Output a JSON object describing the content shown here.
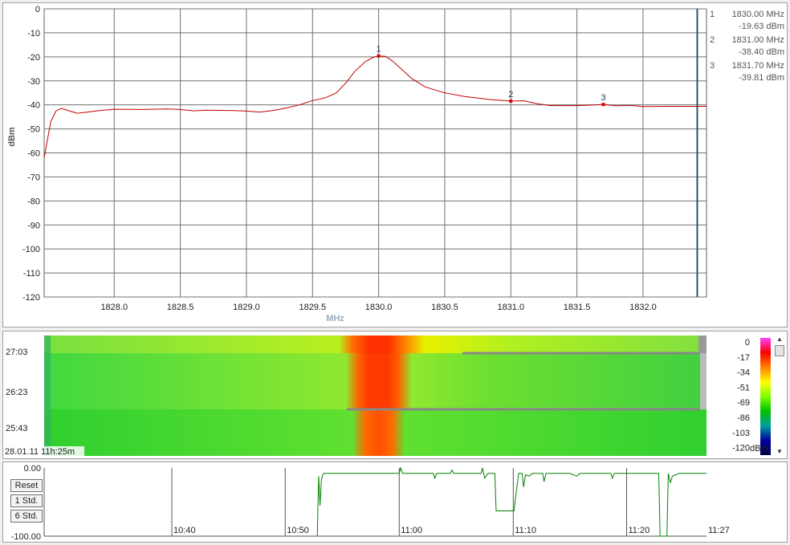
{
  "spectrum": {
    "chart_data": {
      "type": "line",
      "xlabel": "MHz",
      "ylabel": "dBm",
      "xlim": [
        1827.47,
        1832.48
      ],
      "ylim": [
        -120,
        0
      ],
      "xticks": [
        "1828.0",
        "1828.5",
        "1829.0",
        "1829.5",
        "1830.0",
        "1830.5",
        "1831.0",
        "1831.5",
        "1832.0"
      ],
      "xtick_values": [
        1828.0,
        1828.5,
        1829.0,
        1829.5,
        1830.0,
        1830.5,
        1831.0,
        1831.5,
        1832.0
      ],
      "yticks": [
        "0",
        "-10",
        "-20",
        "-30",
        "-40",
        "-50",
        "-60",
        "-70",
        "-80",
        "-90",
        "-100",
        "-110",
        "-120"
      ],
      "ytick_values": [
        0,
        -10,
        -20,
        -30,
        -40,
        -50,
        -60,
        -70,
        -80,
        -90,
        -100,
        -110,
        -120
      ],
      "grid": true,
      "cursor_x": 1832.41,
      "series": [
        {
          "color": "#c00000",
          "points": [
            [
              1827.47,
              -62
            ],
            [
              1827.52,
              -47
            ],
            [
              1827.56,
              -42.5
            ],
            [
              1827.6,
              -41.5
            ],
            [
              1827.66,
              -42.5
            ],
            [
              1827.72,
              -43.5
            ],
            [
              1827.8,
              -43
            ],
            [
              1827.9,
              -42.3
            ],
            [
              1828.0,
              -41.8
            ],
            [
              1828.2,
              -41.9
            ],
            [
              1828.4,
              -41.7
            ],
            [
              1828.5,
              -41.9
            ],
            [
              1828.6,
              -42.5
            ],
            [
              1828.7,
              -42.2
            ],
            [
              1828.9,
              -42.4
            ],
            [
              1829.0,
              -42.6
            ],
            [
              1829.1,
              -43
            ],
            [
              1829.2,
              -42.4
            ],
            [
              1829.3,
              -41.3
            ],
            [
              1829.4,
              -40
            ],
            [
              1829.5,
              -38.2
            ],
            [
              1829.6,
              -37
            ],
            [
              1829.68,
              -35
            ],
            [
              1829.75,
              -31
            ],
            [
              1829.82,
              -26
            ],
            [
              1829.9,
              -22
            ],
            [
              1829.96,
              -20.2
            ],
            [
              1830.0,
              -19.63
            ],
            [
              1830.05,
              -19.8
            ],
            [
              1830.1,
              -21.5
            ],
            [
              1830.18,
              -25.5
            ],
            [
              1830.25,
              -29
            ],
            [
              1830.35,
              -32.5
            ],
            [
              1830.5,
              -35
            ],
            [
              1830.65,
              -36.5
            ],
            [
              1830.85,
              -37.8
            ],
            [
              1831.0,
              -38.4
            ],
            [
              1831.1,
              -38.3
            ],
            [
              1831.2,
              -39.5
            ],
            [
              1831.3,
              -40.3
            ],
            [
              1831.5,
              -40.3
            ],
            [
              1831.6,
              -40.1
            ],
            [
              1831.7,
              -39.81
            ],
            [
              1831.8,
              -40.4
            ],
            [
              1831.9,
              -40.2
            ],
            [
              1832.0,
              -40.7
            ],
            [
              1832.2,
              -40.6
            ],
            [
              1832.48,
              -40.6
            ]
          ]
        }
      ],
      "markers": [
        {
          "label": "1",
          "x": 1830.0,
          "y": -19.63
        },
        {
          "label": "2",
          "x": 1831.0,
          "y": -38.4
        },
        {
          "label": "3",
          "x": 1831.7,
          "y": -39.81
        }
      ]
    },
    "marker_table": [
      {
        "id": "1",
        "freq": "1830.00 MHz",
        "level": "-19.63 dBm"
      },
      {
        "id": "2",
        "freq": "1831.00 MHz",
        "level": "-38.40 dBm"
      },
      {
        "id": "3",
        "freq": "1831.70 MHz",
        "level": "-39.81 dBm"
      }
    ]
  },
  "waterfall": {
    "chart_data": {
      "type": "heatmap",
      "xlim": [
        1827.47,
        1832.48
      ],
      "time_labels": [
        "27:03",
        "26:23",
        "25:43"
      ],
      "timestamp": "28.01.11 11h:25m",
      "peak_center": 1830.0,
      "colorbar": {
        "ticks": [
          "0",
          "-17",
          "-34",
          "-51",
          "-69",
          "-86",
          "-103",
          "-120"
        ],
        "unit": "dBm",
        "stops": [
          "#ff40ff",
          "#ff0000",
          "#ff8000",
          "#ffff00",
          "#80ff00",
          "#00c000",
          "#00a0a0",
          "#0000a0",
          "#000040"
        ]
      }
    }
  },
  "trend": {
    "buttons": {
      "reset": "Reset",
      "std1": "1 Std.",
      "std6": "6 Std."
    },
    "chart_data": {
      "type": "line",
      "ylim": [
        -100,
        0
      ],
      "yticks": [
        "0.00",
        "-100.00"
      ],
      "xlim": [
        10.48,
        11.45
      ],
      "xticks": [
        "10:40",
        "10:50",
        "11:00",
        "11:10",
        "11:20",
        "11:27"
      ],
      "xtick_values": [
        10.667,
        10.833,
        11.0,
        11.167,
        11.333,
        11.45
      ],
      "series": [
        {
          "color": "#008000",
          "points": [
            [
              10.88,
              -100
            ],
            [
              10.882,
              -12
            ],
            [
              10.884,
              -55
            ],
            [
              10.886,
              -18
            ],
            [
              10.888,
              -10
            ],
            [
              10.89,
              -8
            ],
            [
              11.0,
              -8
            ],
            [
              11.002,
              0
            ],
            [
              11.005,
              -8
            ],
            [
              11.05,
              -8
            ],
            [
              11.052,
              -15
            ],
            [
              11.055,
              -8
            ],
            [
              11.075,
              -8
            ],
            [
              11.077,
              -3
            ],
            [
              11.08,
              -8
            ],
            [
              11.12,
              -8
            ],
            [
              11.122,
              0
            ],
            [
              11.125,
              -15
            ],
            [
              11.13,
              -8
            ],
            [
              11.14,
              -8
            ],
            [
              11.142,
              -63
            ],
            [
              11.168,
              -63
            ],
            [
              11.17,
              -45
            ],
            [
              11.175,
              -8
            ],
            [
              11.18,
              -8
            ],
            [
              11.182,
              -28
            ],
            [
              11.185,
              -10
            ],
            [
              11.19,
              -12
            ],
            [
              11.195,
              -8
            ],
            [
              11.21,
              -8
            ],
            [
              11.212,
              -20
            ],
            [
              11.215,
              -8
            ],
            [
              11.25,
              -8
            ],
            [
              11.26,
              -12
            ],
            [
              11.265,
              -8
            ],
            [
              11.31,
              -8
            ],
            [
              11.312,
              -15
            ],
            [
              11.315,
              -8
            ],
            [
              11.38,
              -8
            ],
            [
              11.382,
              -100
            ],
            [
              11.392,
              -100
            ],
            [
              11.394,
              -8
            ],
            [
              11.397,
              -22
            ],
            [
              11.4,
              -12
            ],
            [
              11.41,
              -8
            ],
            [
              11.45,
              -8
            ]
          ]
        }
      ]
    }
  }
}
